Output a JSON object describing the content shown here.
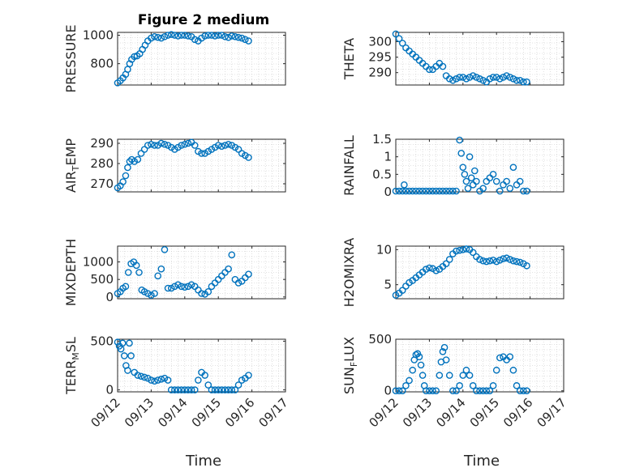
{
  "figure_title": "Figure 2 medium",
  "xaxis_label": "Time",
  "x_ticks": [
    "09/12",
    "09/13",
    "09/14",
    "09/15",
    "09/16",
    "09/17"
  ],
  "marker_color": "#0072BD",
  "chart_data": [
    {
      "type": "scatter",
      "title": "Figure 2 medium",
      "ylabel": "PRESSURE",
      "xlim": [
        0,
        5
      ],
      "ylim": [
        650,
        1020
      ],
      "yticks": [
        800,
        1000
      ],
      "x": [
        0.0,
        0.08,
        0.16,
        0.24,
        0.3,
        0.36,
        0.42,
        0.5,
        0.58,
        0.66,
        0.74,
        0.82,
        0.9,
        1.0,
        1.1,
        1.2,
        1.3,
        1.4,
        1.5,
        1.6,
        1.7,
        1.8,
        1.9,
        2.0,
        2.1,
        2.2,
        2.3,
        2.4,
        2.5,
        2.6,
        2.7,
        2.8,
        2.9,
        3.0,
        3.1,
        3.2,
        3.3,
        3.4,
        3.5,
        3.6,
        3.7,
        3.8,
        3.9
      ],
      "y": [
        665,
        680,
        700,
        725,
        760,
        800,
        830,
        850,
        855,
        870,
        900,
        930,
        960,
        980,
        990,
        985,
        980,
        990,
        1000,
        1005,
        1000,
        995,
        1000,
        1000,
        995,
        990,
        970,
        960,
        980,
        995,
        1000,
        1000,
        995,
        1000,
        1000,
        990,
        985,
        995,
        990,
        985,
        980,
        970,
        960
      ]
    },
    {
      "type": "scatter",
      "title": "",
      "ylabel": "THETA",
      "xlim": [
        0,
        5
      ],
      "ylim": [
        286,
        303
      ],
      "yticks": [
        290,
        295,
        300
      ],
      "x": [
        0.0,
        0.1,
        0.2,
        0.3,
        0.4,
        0.5,
        0.6,
        0.7,
        0.8,
        0.9,
        1.0,
        1.1,
        1.2,
        1.3,
        1.4,
        1.5,
        1.6,
        1.7,
        1.8,
        1.9,
        2.0,
        2.1,
        2.2,
        2.3,
        2.4,
        2.5,
        2.6,
        2.7,
        2.8,
        2.9,
        3.0,
        3.1,
        3.2,
        3.3,
        3.4,
        3.5,
        3.6,
        3.7,
        3.8,
        3.9
      ],
      "y": [
        302.5,
        301,
        299.5,
        298,
        297,
        296,
        295,
        294,
        293,
        292,
        291,
        291,
        292,
        293,
        292,
        289,
        288,
        287.5,
        288,
        288.5,
        288.5,
        288,
        288.5,
        289,
        288.5,
        288,
        287.5,
        287,
        288,
        288.5,
        288.5,
        288,
        288.5,
        289,
        288.5,
        288,
        287.5,
        287.5,
        287,
        287
      ]
    },
    {
      "type": "scatter",
      "title": "",
      "ylabel": "AIR_TEMP",
      "xlim": [
        0,
        5
      ],
      "ylim": [
        266,
        292
      ],
      "yticks": [
        270,
        280,
        290
      ],
      "x": [
        0.0,
        0.08,
        0.16,
        0.24,
        0.3,
        0.36,
        0.42,
        0.5,
        0.6,
        0.7,
        0.8,
        0.9,
        1.0,
        1.1,
        1.2,
        1.3,
        1.4,
        1.5,
        1.6,
        1.7,
        1.8,
        1.9,
        2.0,
        2.1,
        2.2,
        2.3,
        2.4,
        2.5,
        2.6,
        2.7,
        2.8,
        2.9,
        3.0,
        3.1,
        3.2,
        3.3,
        3.4,
        3.5,
        3.6,
        3.7,
        3.8,
        3.9
      ],
      "y": [
        268,
        269,
        271,
        274,
        278,
        281,
        282,
        281,
        282,
        285,
        287,
        289,
        289.5,
        289,
        289,
        290,
        289.5,
        289,
        288,
        287,
        288,
        289,
        289.5,
        290,
        290.5,
        289,
        286,
        285,
        285,
        286,
        287,
        288,
        289,
        288.5,
        289,
        289.5,
        289,
        288,
        287,
        285,
        284,
        283
      ]
    },
    {
      "type": "scatter",
      "title": "",
      "ylabel": "RAINFALL",
      "xlim": [
        0,
        5
      ],
      "ylim": [
        0,
        1.5
      ],
      "yticks": [
        0,
        0.5,
        1,
        1.5
      ],
      "x": [
        0.0,
        0.1,
        0.2,
        0.25,
        0.3,
        0.4,
        0.5,
        0.6,
        0.7,
        0.8,
        0.9,
        1.0,
        1.1,
        1.2,
        1.3,
        1.4,
        1.5,
        1.6,
        1.7,
        1.8,
        1.9,
        1.95,
        2.0,
        2.05,
        2.1,
        2.15,
        2.2,
        2.25,
        2.3,
        2.35,
        2.4,
        2.5,
        2.6,
        2.7,
        2.8,
        2.9,
        3.0,
        3.1,
        3.2,
        3.3,
        3.4,
        3.5,
        3.6,
        3.7,
        3.8,
        3.9
      ],
      "y": [
        0,
        0,
        0,
        0.2,
        0,
        0,
        0,
        0,
        0,
        0,
        0,
        0,
        0,
        0,
        0,
        0,
        0,
        0,
        0,
        0,
        1.5,
        1.1,
        0.7,
        0.5,
        0.3,
        0.1,
        1.0,
        0.4,
        0.2,
        0.6,
        0.3,
        0,
        0.1,
        0.3,
        0.4,
        0.5,
        0.3,
        0,
        0.2,
        0.3,
        0.1,
        0.7,
        0.2,
        0.3,
        0,
        0
      ]
    },
    {
      "type": "scatter",
      "title": "",
      "ylabel": "MIXDEPTH",
      "xlim": [
        0,
        5
      ],
      "ylim": [
        -50,
        1450
      ],
      "yticks": [
        0,
        500,
        1000
      ],
      "x": [
        0.0,
        0.08,
        0.16,
        0.24,
        0.32,
        0.4,
        0.48,
        0.56,
        0.64,
        0.72,
        0.8,
        0.9,
        1.0,
        1.1,
        1.2,
        1.3,
        1.4,
        1.5,
        1.6,
        1.7,
        1.8,
        1.9,
        2.0,
        2.1,
        2.2,
        2.3,
        2.4,
        2.5,
        2.6,
        2.7,
        2.8,
        2.9,
        3.0,
        3.1,
        3.2,
        3.3,
        3.4,
        3.5,
        3.6,
        3.7,
        3.8,
        3.9
      ],
      "y": [
        100,
        150,
        250,
        300,
        700,
        950,
        1000,
        900,
        700,
        200,
        150,
        100,
        50,
        100,
        600,
        800,
        1350,
        250,
        250,
        300,
        350,
        300,
        280,
        300,
        350,
        300,
        200,
        100,
        80,
        150,
        300,
        400,
        500,
        600,
        700,
        800,
        1200,
        500,
        400,
        450,
        550,
        650
      ]
    },
    {
      "type": "scatter",
      "title": "",
      "ylabel": "H2OMIXRA",
      "xlim": [
        0,
        5
      ],
      "ylim": [
        3,
        10.5
      ],
      "yticks": [
        5,
        10
      ],
      "x": [
        0.0,
        0.1,
        0.2,
        0.3,
        0.4,
        0.5,
        0.6,
        0.7,
        0.8,
        0.9,
        1.0,
        1.1,
        1.2,
        1.3,
        1.4,
        1.5,
        1.6,
        1.7,
        1.8,
        1.9,
        2.0,
        2.1,
        2.2,
        2.3,
        2.4,
        2.5,
        2.6,
        2.7,
        2.8,
        2.9,
        3.0,
        3.1,
        3.2,
        3.3,
        3.4,
        3.5,
        3.6,
        3.7,
        3.8,
        3.9
      ],
      "y": [
        3.5,
        3.8,
        4.2,
        4.8,
        5.3,
        5.6,
        6.0,
        6.4,
        6.8,
        7.2,
        7.4,
        7.3,
        7.0,
        7.2,
        7.6,
        8.0,
        8.6,
        9.4,
        9.8,
        9.9,
        10.0,
        10.1,
        10.0,
        9.6,
        9.0,
        8.6,
        8.4,
        8.3,
        8.4,
        8.5,
        8.3,
        8.5,
        8.7,
        8.8,
        8.6,
        8.4,
        8.3,
        8.2,
        8.0,
        7.7
      ]
    },
    {
      "type": "scatter",
      "title": "",
      "ylabel": "TERR_MSL",
      "xlim": [
        0,
        5
      ],
      "ylim": [
        -20,
        520
      ],
      "yticks": [
        0,
        500
      ],
      "x": [
        0.0,
        0.05,
        0.1,
        0.15,
        0.2,
        0.25,
        0.3,
        0.35,
        0.4,
        0.5,
        0.6,
        0.7,
        0.8,
        0.9,
        1.0,
        1.1,
        1.2,
        1.3,
        1.4,
        1.5,
        1.6,
        1.7,
        1.8,
        1.9,
        2.0,
        2.1,
        2.2,
        2.3,
        2.4,
        2.5,
        2.6,
        2.7,
        2.8,
        2.9,
        3.0,
        3.1,
        3.2,
        3.3,
        3.4,
        3.5,
        3.6,
        3.7,
        3.8,
        3.9
      ],
      "y": [
        490,
        450,
        420,
        480,
        350,
        250,
        200,
        480,
        350,
        180,
        150,
        140,
        130,
        120,
        100,
        90,
        100,
        110,
        120,
        100,
        0,
        0,
        0,
        0,
        0,
        0,
        0,
        0,
        100,
        180,
        150,
        50,
        0,
        0,
        0,
        0,
        0,
        0,
        0,
        0,
        50,
        100,
        120,
        150
      ]
    },
    {
      "type": "scatter",
      "title": "",
      "ylabel": "SUN_FLUX",
      "xlim": [
        0,
        5
      ],
      "ylim": [
        -10,
        500
      ],
      "yticks": [
        0,
        500
      ],
      "x": [
        0.0,
        0.1,
        0.2,
        0.3,
        0.4,
        0.5,
        0.55,
        0.6,
        0.65,
        0.7,
        0.75,
        0.8,
        0.85,
        0.9,
        1.0,
        1.1,
        1.2,
        1.3,
        1.35,
        1.4,
        1.45,
        1.5,
        1.6,
        1.7,
        1.8,
        1.9,
        2.0,
        2.1,
        2.2,
        2.3,
        2.4,
        2.5,
        2.6,
        2.7,
        2.8,
        2.9,
        3.0,
        3.1,
        3.2,
        3.3,
        3.4,
        3.5,
        3.6,
        3.7,
        3.8,
        3.9
      ],
      "y": [
        0,
        0,
        0,
        50,
        100,
        200,
        300,
        350,
        360,
        330,
        250,
        150,
        50,
        0,
        0,
        0,
        0,
        150,
        280,
        380,
        420,
        300,
        150,
        0,
        0,
        50,
        150,
        200,
        150,
        50,
        0,
        0,
        0,
        0,
        0,
        50,
        200,
        320,
        330,
        300,
        330,
        200,
        50,
        0,
        0,
        0
      ]
    }
  ]
}
